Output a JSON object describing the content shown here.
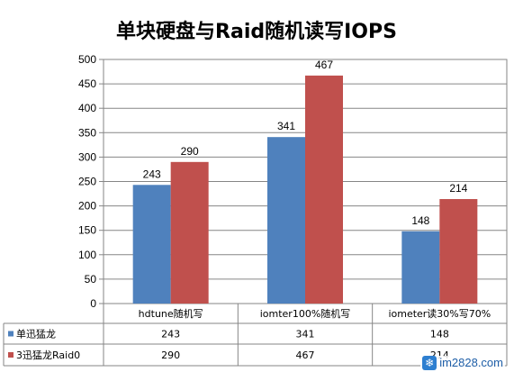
{
  "chart_data": {
    "type": "bar",
    "title": "单块硬盘与Raid随机读写IOPS",
    "categories": [
      "hdtune随机写",
      "iomter100%随机写",
      "iometer读30%写70%"
    ],
    "series": [
      {
        "name": "单迅猛龙",
        "values": [
          243,
          341,
          148
        ],
        "color": "#4f81bd"
      },
      {
        "name": "3迅猛龙Raid0",
        "values": [
          290,
          467,
          214
        ],
        "color": "#c0504d"
      }
    ],
    "xlabel": "",
    "ylabel": "",
    "ylim": [
      0,
      500
    ],
    "yticks": [
      0,
      50,
      100,
      150,
      200,
      250,
      300,
      350,
      400,
      450,
      500
    ],
    "grid": true,
    "legend": "data-table"
  },
  "watermark": {
    "text": "im2828.com",
    "icon": "snowflake-icon"
  }
}
